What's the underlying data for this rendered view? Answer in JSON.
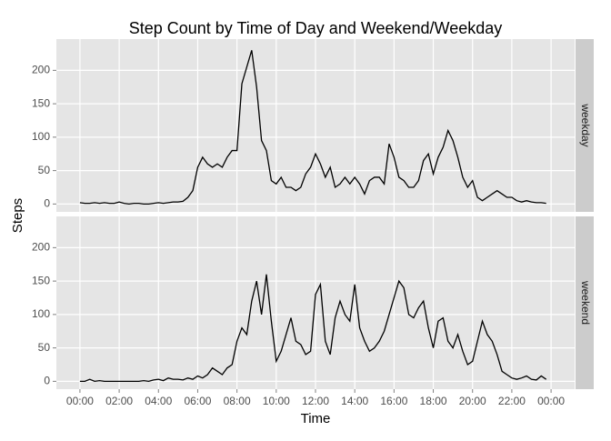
{
  "chart_data": {
    "type": "line",
    "title": "Step Count by Time of Day and Weekend/Weekday",
    "x_label": "Time",
    "y_label": "Steps",
    "facets": true,
    "grid": true,
    "x": [
      0,
      0.25,
      0.5,
      0.75,
      1,
      1.25,
      1.5,
      1.75,
      2,
      2.25,
      2.5,
      2.75,
      3,
      3.25,
      3.5,
      3.75,
      4,
      4.25,
      4.5,
      4.75,
      5,
      5.25,
      5.5,
      5.75,
      6,
      6.25,
      6.5,
      6.75,
      7,
      7.25,
      7.5,
      7.75,
      8,
      8.25,
      8.5,
      8.75,
      9,
      9.25,
      9.5,
      9.75,
      10,
      10.25,
      10.5,
      10.75,
      11,
      11.25,
      11.5,
      11.75,
      12,
      12.25,
      12.5,
      12.75,
      13,
      13.25,
      13.5,
      13.75,
      14,
      14.25,
      14.5,
      14.75,
      15,
      15.25,
      15.5,
      15.75,
      16,
      16.25,
      16.5,
      16.75,
      17,
      17.25,
      17.5,
      17.75,
      18,
      18.25,
      18.5,
      18.75,
      19,
      19.25,
      19.5,
      19.75,
      20,
      20.25,
      20.5,
      20.75,
      21,
      21.25,
      21.5,
      21.75,
      22,
      22.25,
      22.5,
      22.75,
      23,
      23.25,
      23.5,
      23.75
    ],
    "xlim": [
      -1.2,
      25.2
    ],
    "xticks": [
      {
        "value": 0,
        "label": "00:00"
      },
      {
        "value": 2,
        "label": "02:00"
      },
      {
        "value": 4,
        "label": "04:00"
      },
      {
        "value": 6,
        "label": "06:00"
      },
      {
        "value": 8,
        "label": "08:00"
      },
      {
        "value": 10,
        "label": "10:00"
      },
      {
        "value": 12,
        "label": "12:00"
      },
      {
        "value": 14,
        "label": "14:00"
      },
      {
        "value": 16,
        "label": "16:00"
      },
      {
        "value": 18,
        "label": "18:00"
      },
      {
        "value": 20,
        "label": "20:00"
      },
      {
        "value": 22,
        "label": "22:00"
      },
      {
        "value": 24,
        "label": "00:00"
      }
    ],
    "ylim": [
      -11.75,
      246.75
    ],
    "yticks": [
      0,
      50,
      100,
      150,
      200
    ],
    "series": [
      {
        "name": "weekday",
        "color": "#000000",
        "values": [
          2,
          1,
          1,
          2,
          1,
          2,
          1,
          1,
          3,
          1,
          0,
          1,
          1,
          0,
          0,
          1,
          2,
          1,
          2,
          3,
          3,
          4,
          10,
          20,
          55,
          70,
          60,
          55,
          60,
          55,
          70,
          80,
          80,
          180,
          205,
          230,
          175,
          95,
          80,
          35,
          30,
          40,
          25,
          25,
          20,
          25,
          45,
          55,
          75,
          60,
          40,
          55,
          25,
          30,
          40,
          30,
          40,
          30,
          15,
          35,
          40,
          40,
          30,
          90,
          70,
          40,
          35,
          25,
          25,
          35,
          65,
          75,
          45,
          70,
          85,
          110,
          95,
          70,
          40,
          25,
          35,
          10,
          5,
          10,
          15,
          20,
          15,
          10,
          10,
          5,
          3,
          5,
          3,
          2,
          2,
          1
        ]
      },
      {
        "name": "weekend",
        "color": "#000000",
        "values": [
          0,
          0,
          3,
          0,
          1,
          0,
          0,
          0,
          0,
          0,
          0,
          0,
          0,
          1,
          0,
          2,
          3,
          1,
          5,
          3,
          3,
          2,
          5,
          3,
          8,
          5,
          10,
          20,
          15,
          10,
          20,
          25,
          60,
          80,
          70,
          120,
          150,
          100,
          160,
          90,
          30,
          45,
          70,
          95,
          60,
          55,
          40,
          45,
          130,
          145,
          60,
          40,
          95,
          120,
          100,
          90,
          145,
          80,
          60,
          45,
          50,
          60,
          75,
          100,
          125,
          150,
          140,
          100,
          95,
          110,
          120,
          80,
          50,
          90,
          95,
          60,
          50,
          70,
          45,
          25,
          30,
          60,
          90,
          70,
          60,
          40,
          15,
          10,
          5,
          3,
          5,
          8,
          3,
          2,
          8,
          3
        ]
      }
    ]
  }
}
